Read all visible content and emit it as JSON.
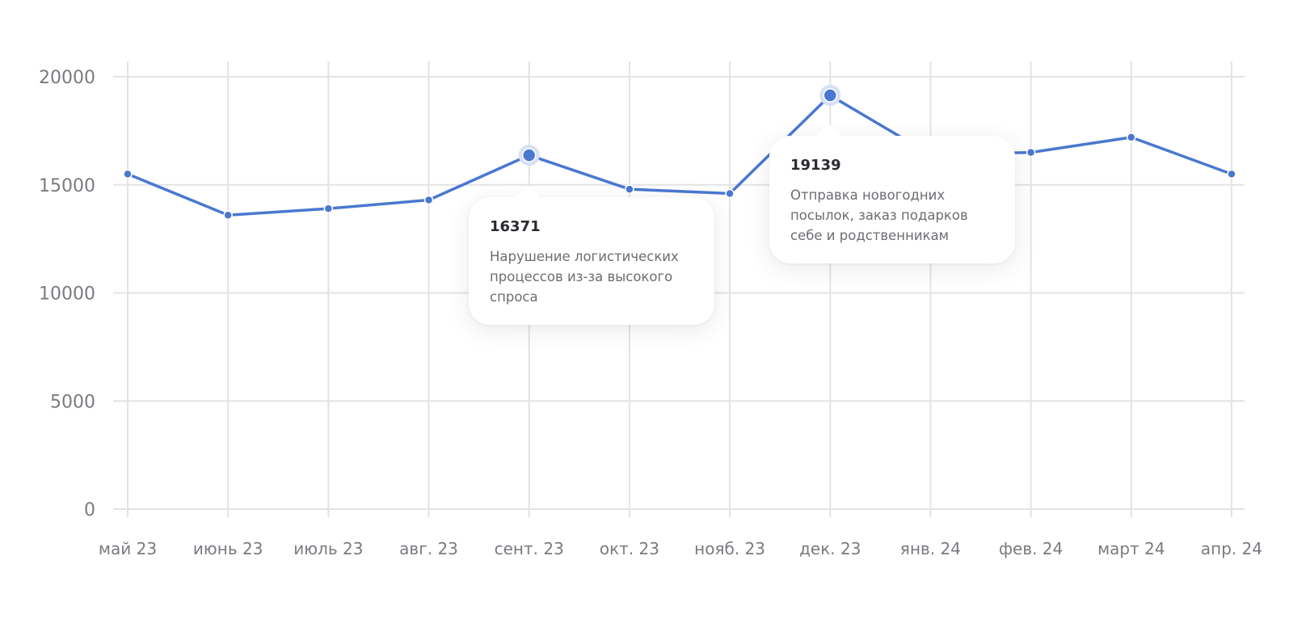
{
  "colors": {
    "line": "#4a78d0",
    "grid": "#e3e3e6",
    "text": "#7a7a80",
    "highlight_halo": "#d6e0f6"
  },
  "chart_data": {
    "type": "line",
    "title": "",
    "xlabel": "",
    "ylabel": "",
    "ylim": [
      0,
      20000
    ],
    "y_ticks": [
      "0",
      "5000",
      "10000",
      "15000",
      "20000"
    ],
    "y_tick_values": [
      0,
      5000,
      10000,
      15000,
      20000
    ],
    "categories": [
      "май 23",
      "июнь 23",
      "июль 23",
      "авг. 23",
      "сент. 23",
      "окт. 23",
      "нояб. 23",
      "дек. 23",
      "янв. 24",
      "фев. 24",
      "март 24",
      "апр. 24"
    ],
    "series": [
      {
        "values": [
          15500,
          13600,
          13900,
          14300,
          16371,
          14800,
          14600,
          19139,
          16400,
          16500,
          17200,
          15500
        ]
      }
    ],
    "grid": true,
    "legend": "none",
    "annotations": [
      {
        "index": 4,
        "value": "16371",
        "text": "Нарушение логистических процессов из-за высокого спроса"
      },
      {
        "index": 7,
        "value": "19139",
        "text": "Отправка новогодних посылок, заказ подарков себе и родственникам"
      }
    ]
  }
}
